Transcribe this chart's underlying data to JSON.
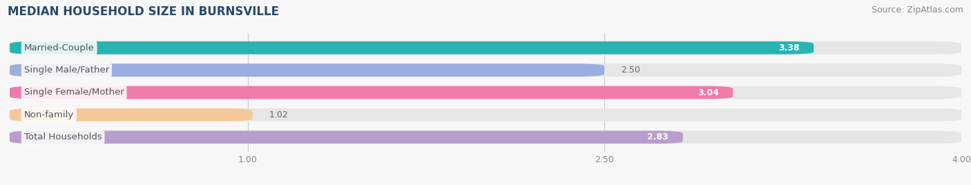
{
  "title": "MEDIAN HOUSEHOLD SIZE IN BURNSVILLE",
  "source": "Source: ZipAtlas.com",
  "categories": [
    "Married-Couple",
    "Single Male/Father",
    "Single Female/Mother",
    "Non-family",
    "Total Households"
  ],
  "values": [
    3.38,
    2.5,
    3.04,
    1.02,
    2.83
  ],
  "bar_colors": [
    "#29b4b4",
    "#9baee0",
    "#f07aaa",
    "#f5c899",
    "#b89ecc"
  ],
  "bar_bg_color": "#e6e6e6",
  "xlim_min": 0.0,
  "xlim_max": 4.0,
  "xticks": [
    1.0,
    2.5,
    4.0
  ],
  "xtick_labels": [
    "1.00",
    "2.50",
    "4.00"
  ],
  "bar_height": 0.58,
  "label_fontsize": 9.5,
  "value_fontsize": 9.0,
  "title_fontsize": 12,
  "source_fontsize": 9,
  "bg_color": "#f7f7f7",
  "label_text_color": "#555555",
  "value_inside_color": "white",
  "value_outside_color": "#666666"
}
